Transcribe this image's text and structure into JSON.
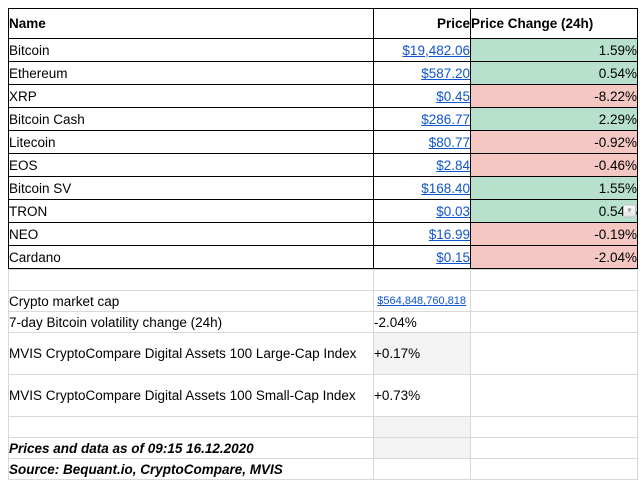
{
  "colors": {
    "positive_bg": "#b7e1cd",
    "negative_bg": "#f4c7c3",
    "link": "#1155cc",
    "muted_cell": "#f3f3f3"
  },
  "table": {
    "headers": {
      "name": "Name",
      "price": "Price",
      "change": "Price Change (24h)"
    },
    "rows": [
      {
        "name": "Bitcoin",
        "price": "$19,482.06",
        "change": "1.59%",
        "direction": "up"
      },
      {
        "name": "Ethereum",
        "price": "$587.20",
        "change": "0.54%",
        "direction": "up"
      },
      {
        "name": "XRP",
        "price": "$0.45",
        "change": "-8.22%",
        "direction": "down"
      },
      {
        "name": "Bitcoin Cash",
        "price": "$286.77",
        "change": "2.29%",
        "direction": "up"
      },
      {
        "name": "Litecoin",
        "price": "$80.77",
        "change": "-0.92%",
        "direction": "down"
      },
      {
        "name": "EOS",
        "price": "$2.84",
        "change": "-0.46%",
        "direction": "down"
      },
      {
        "name": "Bitcoin SV",
        "price": "$168.40",
        "change": "1.55%",
        "direction": "up"
      },
      {
        "name": "TRON",
        "price": "$0.03",
        "change": "0.54%",
        "direction": "up",
        "has_dropdown": true
      },
      {
        "name": "NEO",
        "price": "$16.99",
        "change": "-0.19%",
        "direction": "down"
      },
      {
        "name": "Cardano",
        "price": "$0.15",
        "change": "-2.04%",
        "direction": "down"
      }
    ]
  },
  "stats": [
    {
      "label": "Crypto market cap",
      "value": "$564,848,760,818"
    },
    {
      "label": "7-day Bitcoin volatility change (24h)",
      "value": "-2.04%"
    },
    {
      "label": "MVIS CryptoCompare Digital Assets 100 Large-Cap Index",
      "value": "+0.17%"
    },
    {
      "label": "MVIS CryptoCompare Digital Assets 100 Small-Cap Index",
      "value": "+0.73%"
    }
  ],
  "footer": {
    "as_of": "Prices and data as of 09:15 16.12.2020",
    "source": "Source: Bequant.io, CryptoCompare, MVIS"
  },
  "icons": {
    "tron_dropdown": "dropdown-arrow"
  }
}
